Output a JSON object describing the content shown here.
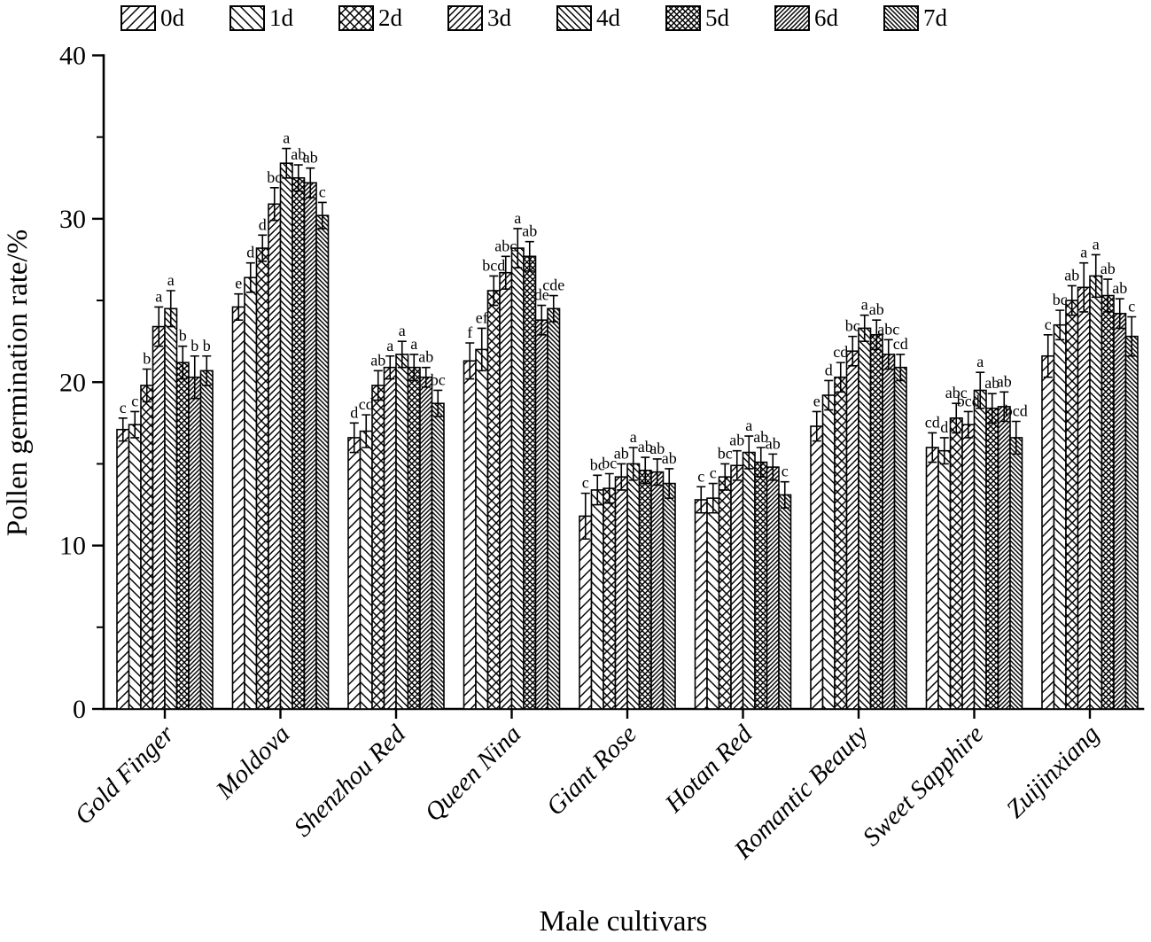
{
  "colors": {
    "ink": "#000000",
    "background": "#ffffff"
  },
  "chart_data": {
    "type": "bar",
    "title": "",
    "xlabel": "Male cultivars",
    "ylabel": "Pollen germination rate/%",
    "ylim": [
      0,
      40
    ],
    "yticks_major": [
      0,
      10,
      20,
      30,
      40
    ],
    "yticks_minor": [
      5,
      15,
      25,
      35
    ],
    "grid": false,
    "legend_position": "top",
    "categories": [
      "Gold Finger",
      "Moldova",
      "Shenzhou Red",
      "Queen Nina",
      "Giant Rose",
      "Hotan Red",
      "Romantic Beauty",
      "Sweet Sapphire",
      "Zuijinxiang"
    ],
    "series": [
      {
        "name": "0d",
        "hatch": {
          "type": "diag-f",
          "spacing": 11
        },
        "values": [
          17.1,
          24.6,
          16.6,
          21.3,
          11.8,
          12.8,
          17.3,
          16.0,
          21.6
        ],
        "errors": [
          0.7,
          0.8,
          0.9,
          1.1,
          1.4,
          0.8,
          0.9,
          0.9,
          1.3
        ],
        "letters": [
          "c",
          "e",
          "d",
          "f",
          "c",
          "c",
          "e",
          "cd",
          "c"
        ]
      },
      {
        "name": "1d",
        "hatch": {
          "type": "diag-b",
          "spacing": 11
        },
        "values": [
          17.4,
          26.4,
          17.0,
          22.0,
          13.4,
          12.9,
          19.2,
          15.8,
          23.5
        ],
        "errors": [
          0.8,
          0.9,
          1.0,
          1.3,
          0.9,
          0.9,
          0.9,
          0.8,
          0.9
        ],
        "letters": [
          "c",
          "d",
          "cd",
          "ef",
          "bc",
          "c",
          "d",
          "d",
          "bc"
        ]
      },
      {
        "name": "2d",
        "hatch": {
          "type": "cross",
          "spacing": 10
        },
        "values": [
          19.8,
          28.2,
          19.8,
          25.6,
          13.5,
          14.2,
          20.3,
          17.8,
          25.0
        ],
        "errors": [
          1.0,
          0.8,
          0.9,
          0.9,
          0.9,
          0.8,
          0.9,
          0.9,
          0.9
        ],
        "letters": [
          "b",
          "d",
          "ab",
          "bcd",
          "bc",
          "bc",
          "cd",
          "abc",
          "ab"
        ]
      },
      {
        "name": "3d",
        "hatch": {
          "type": "diag-f",
          "spacing": 7.5
        },
        "values": [
          23.4,
          30.9,
          20.9,
          26.7,
          14.2,
          14.9,
          21.9,
          17.4,
          25.8
        ],
        "errors": [
          1.2,
          1.0,
          0.7,
          1.0,
          0.8,
          0.9,
          0.9,
          0.8,
          1.5
        ],
        "letters": [
          "a",
          "bc",
          "a",
          "abc",
          "ab",
          "ab",
          "bc",
          "bcd",
          "a"
        ]
      },
      {
        "name": "4d",
        "hatch": {
          "type": "diag-b",
          "spacing": 7.5
        },
        "values": [
          24.5,
          33.4,
          21.7,
          28.2,
          15.0,
          15.7,
          23.3,
          19.5,
          26.5
        ],
        "errors": [
          1.1,
          0.9,
          0.8,
          1.2,
          1.0,
          1.0,
          0.8,
          1.1,
          1.3
        ],
        "letters": [
          "a",
          "a",
          "a",
          "a",
          "a",
          "a",
          "a",
          "a",
          "a"
        ]
      },
      {
        "name": "5d",
        "hatch": {
          "type": "cross",
          "spacing": 6.5
        },
        "values": [
          21.2,
          32.5,
          20.9,
          27.7,
          14.6,
          15.1,
          22.9,
          18.4,
          25.3
        ],
        "errors": [
          1.0,
          0.8,
          0.8,
          0.9,
          0.8,
          0.9,
          0.9,
          0.9,
          1.0
        ],
        "letters": [
          "b",
          "ab",
          "a",
          "ab",
          "ab",
          "ab",
          "ab",
          "ab",
          "ab"
        ]
      },
      {
        "name": "6d",
        "hatch": {
          "type": "diag-f",
          "spacing": 5
        },
        "values": [
          20.3,
          32.2,
          20.3,
          23.8,
          14.5,
          14.8,
          21.7,
          18.5,
          24.2
        ],
        "errors": [
          1.3,
          0.9,
          0.6,
          0.9,
          0.8,
          0.8,
          0.9,
          0.9,
          0.9
        ],
        "letters": [
          "b",
          "ab",
          "ab",
          "de",
          "ab",
          "ab",
          "abc",
          "ab",
          "ab"
        ]
      },
      {
        "name": "7d",
        "hatch": {
          "type": "diag-b",
          "spacing": 5
        },
        "values": [
          20.7,
          30.2,
          18.7,
          24.5,
          13.8,
          13.1,
          20.9,
          16.6,
          22.8
        ],
        "errors": [
          0.9,
          0.8,
          0.8,
          0.8,
          0.9,
          0.8,
          0.8,
          1.0,
          1.2
        ],
        "letters": [
          "b",
          "c",
          "bc",
          "cde",
          "ab",
          "c",
          "cd",
          "bcd",
          "c"
        ]
      }
    ]
  }
}
